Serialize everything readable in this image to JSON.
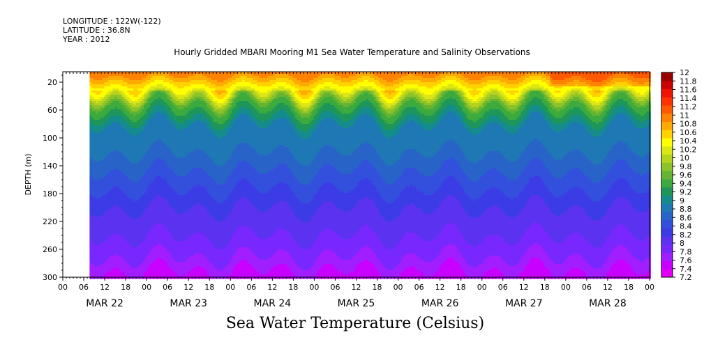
{
  "header": {
    "longitude": "LONGITUDE : 122W(-122)",
    "latitude": "LATITUDE : 36.8N",
    "year": "YEAR : 2012",
    "title": "Hourly Gridded MBARI Mooring M1 Sea Water Temperature and Salinity Observations"
  },
  "footer": {
    "subject": "Sea Water Temperature (Celsius)"
  },
  "chart_data": {
    "type": "heatmap",
    "title": "Hourly Gridded MBARI Mooring M1 Sea Water Temperature and Salinity Observations",
    "xlabel": "",
    "ylabel": "DEPTH (m)",
    "x_hour_ticks": [
      "00",
      "06",
      "12",
      "18",
      "00",
      "06",
      "12",
      "18",
      "00",
      "06",
      "12",
      "18",
      "00",
      "06",
      "12",
      "18",
      "00",
      "06",
      "12",
      "18",
      "00",
      "06",
      "12",
      "18",
      "00",
      "06",
      "12",
      "18",
      "00"
    ],
    "x_day_labels": [
      "MAR 22",
      "MAR 23",
      "MAR 24",
      "MAR 25",
      "MAR 26",
      "MAR 27",
      "MAR 28"
    ],
    "x_range_days": [
      0,
      7
    ],
    "data_start_day": 0.32,
    "y_ticks": [
      20,
      60,
      100,
      140,
      180,
      220,
      260,
      300
    ],
    "ylim": [
      300,
      5
    ],
    "y_inverted": true,
    "colorbar_levels": [
      "7.2",
      "7.4",
      "7.6",
      "7.8",
      "8",
      "8.2",
      "8.4",
      "8.6",
      "8.8",
      "9",
      "9.2",
      "9.4",
      "9.6",
      "9.8",
      "10",
      "10.2",
      "10.4",
      "10.6",
      "10.8",
      "11",
      "11.2",
      "11.4",
      "11.6",
      "11.8",
      "12"
    ],
    "colorbar_colors": [
      "#e100f5",
      "#c800ff",
      "#a01eff",
      "#7828ff",
      "#5a32f0",
      "#3c3ce6",
      "#3250dc",
      "#2864c8",
      "#1e78b4",
      "#148c8c",
      "#1e965a",
      "#3caa3c",
      "#64b432",
      "#8cc328",
      "#b4d21e",
      "#dce614",
      "#ffff00",
      "#ffd200",
      "#ffaa00",
      "#ff8200",
      "#ff5a00",
      "#ff3200",
      "#f01400",
      "#cc0000",
      "#990000"
    ],
    "approx_depth_profile": [
      {
        "depth": 10,
        "temp": 11.0
      },
      {
        "depth": 30,
        "temp": 10.4
      },
      {
        "depth": 50,
        "temp": 9.6
      },
      {
        "depth": 80,
        "temp": 9.0
      },
      {
        "depth": 120,
        "temp": 8.8
      },
      {
        "depth": 160,
        "temp": 8.5
      },
      {
        "depth": 200,
        "temp": 8.2
      },
      {
        "depth": 240,
        "temp": 8.0
      },
      {
        "depth": 270,
        "temp": 7.8
      },
      {
        "depth": 300,
        "temp": 7.5
      }
    ]
  }
}
